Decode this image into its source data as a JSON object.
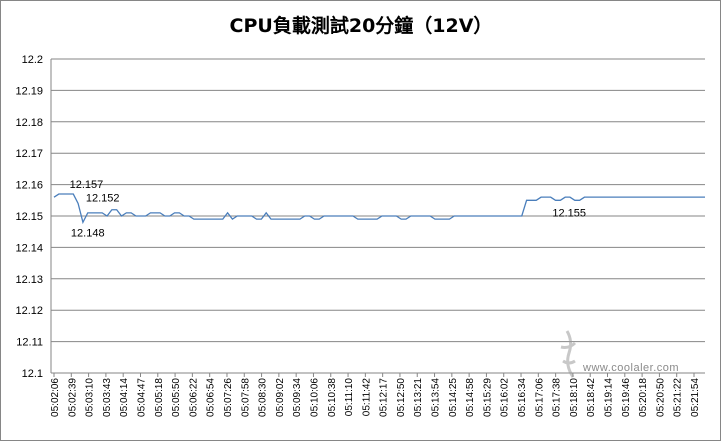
{
  "chart_data": {
    "type": "line",
    "title": "CPU負載測試20分鐘（12V）",
    "xlabel": "",
    "ylabel": "",
    "ylim": [
      12.1,
      12.2
    ],
    "yticks": [
      "12.1",
      "12.11",
      "12.12",
      "12.13",
      "12.14",
      "12.15",
      "12.16",
      "12.17",
      "12.18",
      "12.19",
      "12.2"
    ],
    "grid": "horizontal",
    "legend": "none",
    "line_color": "#4a7ebb",
    "x_tick_labels": [
      "05:02:06",
      "05:02:39",
      "05:03:10",
      "05:03:43",
      "05:04:14",
      "05:04:47",
      "05:05:18",
      "05:05:50",
      "05:06:22",
      "05:06:54",
      "05:07:26",
      "05:07:58",
      "05:08:30",
      "05:09:02",
      "05:09:34",
      "05:10:06",
      "05:10:38",
      "05:11:10",
      "05:11:42",
      "05:12:17",
      "05:12:50",
      "05:13:21",
      "05:13:54",
      "05:14:25",
      "05:14:58",
      "05:15:29",
      "05:16:02",
      "05:16:34",
      "05:17:06",
      "05:17:38",
      "05:18:10",
      "05:18:42",
      "05:19:14",
      "05:19:46",
      "05:20:18",
      "05:20:50",
      "05:21:22",
      "05:21:54"
    ],
    "series": [
      {
        "values": [
          12.156,
          12.157,
          12.157,
          12.157,
          12.157,
          12.154,
          12.148,
          12.151,
          12.151,
          12.151,
          12.151,
          12.15,
          12.152,
          12.152,
          12.15,
          12.151,
          12.151,
          12.15,
          12.15,
          12.15,
          12.151,
          12.151,
          12.151,
          12.15,
          12.15,
          12.151,
          12.151,
          12.15,
          12.15,
          12.149,
          12.149,
          12.149,
          12.149,
          12.149,
          12.149,
          12.149,
          12.151,
          12.149,
          12.15,
          12.15,
          12.15,
          12.15,
          12.149,
          12.149,
          12.151,
          12.149,
          12.149,
          12.149,
          12.149,
          12.149,
          12.149,
          12.149,
          12.15,
          12.15,
          12.149,
          12.149,
          12.15,
          12.15,
          12.15,
          12.15,
          12.15,
          12.15,
          12.15,
          12.149,
          12.149,
          12.149,
          12.149,
          12.149,
          12.15,
          12.15,
          12.15,
          12.15,
          12.149,
          12.149,
          12.15,
          12.15,
          12.15,
          12.15,
          12.15,
          12.149,
          12.149,
          12.149,
          12.149,
          12.15,
          12.15,
          12.15,
          12.15,
          12.15,
          12.15,
          12.15,
          12.15,
          12.15,
          12.15,
          12.15,
          12.15,
          12.15,
          12.15,
          12.15,
          12.155,
          12.155,
          12.155,
          12.156,
          12.156,
          12.156,
          12.155,
          12.155,
          12.156,
          12.156,
          12.155,
          12.155,
          12.156,
          12.156,
          12.156,
          12.156,
          12.156,
          12.156,
          12.156,
          12.156,
          12.156,
          12.156,
          12.156,
          12.156,
          12.156,
          12.156,
          12.156,
          12.156,
          12.156,
          12.156,
          12.156,
          12.156,
          12.156,
          12.156,
          12.156,
          12.156,
          12.156,
          12.156
        ]
      }
    ],
    "annotations": [
      {
        "text": "12.157",
        "index": 2
      },
      {
        "text": "12.148",
        "index": 6
      },
      {
        "text": "12.152",
        "index": 12
      },
      {
        "text": "12.155",
        "index": 105
      }
    ]
  },
  "watermark": {
    "text": "www.coolaler.com"
  }
}
